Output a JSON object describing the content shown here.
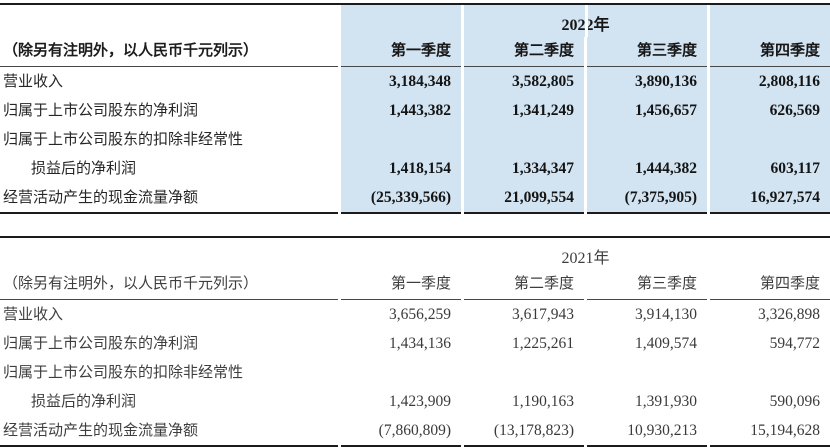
{
  "colors": {
    "highlight_blue": "#d2e3f1",
    "rule_dark": "#1b1b1b",
    "header_underline": "#474747"
  },
  "tables": [
    {
      "year_header": "2022年",
      "unit_note": "（除另有注明外，以人民币千元列示）",
      "quarter_headers": [
        "第一季度",
        "第二季度",
        "第三季度",
        "第四季度"
      ],
      "highlighted": true,
      "rows": [
        {
          "label": "营业收入",
          "values": [
            "3,184,348",
            "3,582,805",
            "3,890,136",
            "2,808,116"
          ]
        },
        {
          "label": "归属于上市公司股东的净利润",
          "values": [
            "1,443,382",
            "1,341,249",
            "1,456,657",
            "626,569"
          ]
        },
        {
          "label": "归属于上市公司股东的扣除非经常性",
          "label_line2": "损益后的净利润",
          "values": [
            "1,418,154",
            "1,334,347",
            "1,444,382",
            "603,117"
          ]
        },
        {
          "label": "经营活动产生的现金流量净额",
          "values": [
            "(25,339,566)",
            "21,099,554",
            "(7,375,905)",
            "16,927,574"
          ]
        }
      ]
    },
    {
      "year_header": "2021年",
      "unit_note": "（除另有注明外，以人民币千元列示）",
      "quarter_headers": [
        "第一季度",
        "第二季度",
        "第三季度",
        "第四季度"
      ],
      "highlighted": false,
      "rows": [
        {
          "label": "营业收入",
          "values": [
            "3,656,259",
            "3,617,943",
            "3,914,130",
            "3,326,898"
          ]
        },
        {
          "label": "归属于上市公司股东的净利润",
          "values": [
            "1,434,136",
            "1,225,261",
            "1,409,574",
            "594,772"
          ]
        },
        {
          "label": "归属于上市公司股东的扣除非经常性",
          "label_line2": "损益后的净利润",
          "values": [
            "1,423,909",
            "1,190,163",
            "1,391,930",
            "590,096"
          ]
        },
        {
          "label": "经营活动产生的现金流量净额",
          "values": [
            "(7,860,809)",
            "(13,178,823)",
            "10,930,213",
            "15,194,628"
          ]
        }
      ]
    }
  ]
}
